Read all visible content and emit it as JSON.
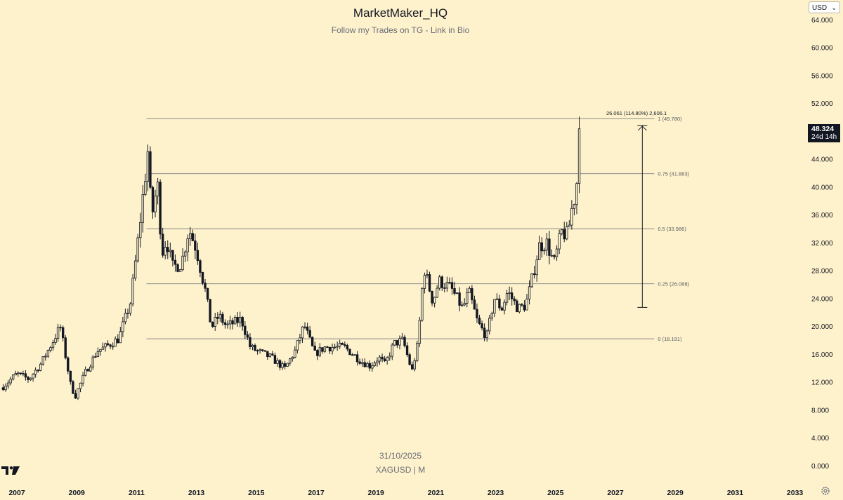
{
  "header": {
    "title": "MarketMaker_HQ",
    "subtitle": "Follow my Trades on TG - Link in Bio"
  },
  "watermark": {
    "date": "31/10/2025",
    "symbol": "XAGUSD | M"
  },
  "currency_selector": {
    "label": "USD",
    "icon": "chevron-down-icon"
  },
  "last_price": {
    "value": "48.324",
    "countdown": "24d 14h"
  },
  "icons": {
    "logo": "tradingview-logo-icon",
    "settings": "gear-icon"
  },
  "colors": {
    "background": "#fef2cc",
    "candles": "#131722",
    "fib_line": "#8a8a8a",
    "text": "#131722",
    "muted_text": "#6a6d78"
  },
  "chart_data": {
    "type": "candlestick",
    "title": "MarketMaker_HQ",
    "subtitle": "Follow my Trades on TG - Link in Bio",
    "symbol": "XAGUSD",
    "interval": "M",
    "currency": "USD",
    "x_range": [
      2006.5,
      2033.5
    ],
    "y_range": [
      0,
      66
    ],
    "x_ticks": [
      "2007",
      "2009",
      "2011",
      "2013",
      "2015",
      "2017",
      "2019",
      "2021",
      "2023",
      "2025",
      "2027",
      "2029",
      "2031",
      "2033"
    ],
    "y_ticks": [
      "0.000",
      "4.000",
      "8.000",
      "12.000",
      "16.000",
      "20.000",
      "24.000",
      "28.000",
      "32.000",
      "36.000",
      "40.000",
      "44.000",
      "48.000",
      "52.000",
      "56.000",
      "60.000",
      "64.000"
    ],
    "price_path": [
      [
        2006.5,
        11.2
      ],
      [
        2007.0,
        13.2
      ],
      [
        2007.4,
        12.4
      ],
      [
        2007.8,
        14.6
      ],
      [
        2008.2,
        17.8
      ],
      [
        2008.45,
        20.0
      ],
      [
        2008.8,
        11.5
      ],
      [
        2008.95,
        10.0
      ],
      [
        2009.3,
        13.5
      ],
      [
        2009.7,
        16.5
      ],
      [
        2009.95,
        17.0
      ],
      [
        2010.4,
        18.2
      ],
      [
        2010.8,
        23.5
      ],
      [
        2011.0,
        30.6
      ],
      [
        2011.3,
        42.0
      ],
      [
        2011.33,
        48.5
      ],
      [
        2011.5,
        35.5
      ],
      [
        2011.7,
        40.5
      ],
      [
        2011.85,
        30.5
      ],
      [
        2012.0,
        32.5
      ],
      [
        2012.2,
        28.5
      ],
      [
        2012.5,
        29.0
      ],
      [
        2012.75,
        34.0
      ],
      [
        2013.0,
        31.0
      ],
      [
        2013.3,
        25.0
      ],
      [
        2013.5,
        19.8
      ],
      [
        2013.75,
        21.5
      ],
      [
        2014.0,
        20.0
      ],
      [
        2014.5,
        21.0
      ],
      [
        2014.8,
        17.0
      ],
      [
        2015.0,
        16.5
      ],
      [
        2015.5,
        15.5
      ],
      [
        2015.95,
        13.9
      ],
      [
        2016.3,
        16.5
      ],
      [
        2016.6,
        20.2
      ],
      [
        2016.95,
        16.0
      ],
      [
        2017.3,
        17.0
      ],
      [
        2017.95,
        17.0
      ],
      [
        2018.5,
        15.0
      ],
      [
        2018.8,
        14.3
      ],
      [
        2019.1,
        15.5
      ],
      [
        2019.3,
        14.5
      ],
      [
        2019.6,
        17.5
      ],
      [
        2019.9,
        18.0
      ],
      [
        2020.2,
        13.5
      ],
      [
        2020.4,
        17.5
      ],
      [
        2020.6,
        28.5
      ],
      [
        2020.9,
        23.5
      ],
      [
        2021.1,
        26.5
      ],
      [
        2021.5,
        25.5
      ],
      [
        2021.9,
        22.5
      ],
      [
        2022.1,
        25.0
      ],
      [
        2022.4,
        20.5
      ],
      [
        2022.7,
        18.5
      ],
      [
        2022.95,
        24.0
      ],
      [
        2023.2,
        22.5
      ],
      [
        2023.4,
        25.0
      ],
      [
        2023.75,
        22.5
      ],
      [
        2024.0,
        23.0
      ],
      [
        2024.15,
        25.5
      ],
      [
        2024.45,
        31.5
      ],
      [
        2024.7,
        32.0
      ],
      [
        2024.95,
        29.0
      ],
      [
        2025.2,
        33.5
      ],
      [
        2025.4,
        33.0
      ],
      [
        2025.55,
        37.0
      ],
      [
        2025.7,
        39.5
      ],
      [
        2025.75,
        46.5
      ],
      [
        2025.83,
        48.3
      ]
    ],
    "fib_retracement": {
      "levels": [
        {
          "ratio": "1",
          "price": 49.78,
          "label": "1 (49.780)"
        },
        {
          "ratio": "0.75",
          "price": 41.883,
          "label": "0.75 (41.883)"
        },
        {
          "ratio": "0.5",
          "price": 33.986,
          "label": "0.5 (33.986)"
        },
        {
          "ratio": "0.25",
          "price": 26.088,
          "label": "0.25 (26.088)"
        },
        {
          "ratio": "0",
          "price": 18.191,
          "label": "0 (18.191)"
        }
      ],
      "start_x": 2011.33,
      "end_x": 2028.3
    },
    "price_range_measure": {
      "label": "26.061 (114.80%) 2,606.1",
      "x": 2027.9,
      "from": 22.7,
      "to": 48.8
    },
    "last_price": 48.324,
    "last_price_label": "48.324",
    "countdown": "24d 14h"
  }
}
